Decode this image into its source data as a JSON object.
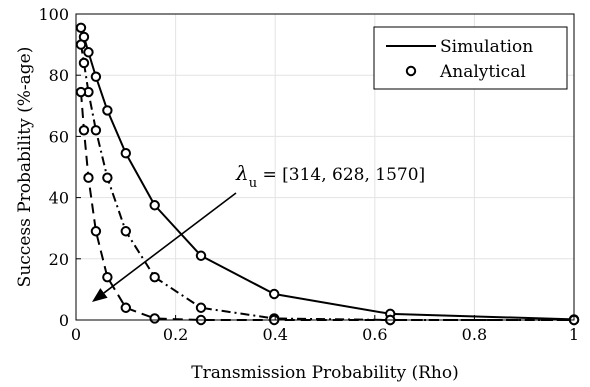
{
  "chart_data": {
    "type": "line",
    "xlabel": "Transmission Probability (Rho)",
    "ylabel": "Success Probability (%-age)",
    "xlim": [
      0,
      1
    ],
    "ylim": [
      0,
      100
    ],
    "xticks": [
      0,
      0.2,
      0.4,
      0.6,
      0.8,
      1
    ],
    "xtick_labels": [
      "0",
      "0.2",
      "0.4",
      "0.6",
      "0.8",
      "1"
    ],
    "yticks": [
      0,
      20,
      40,
      60,
      80,
      100
    ],
    "ytick_labels": [
      "0",
      "20",
      "40",
      "60",
      "80",
      "100"
    ],
    "grid": true,
    "legend_position": "top-right",
    "legend": [
      {
        "label": "Simulation",
        "style": "solid-line"
      },
      {
        "label": "Analytical",
        "style": "circle-marker"
      }
    ],
    "annotation": {
      "prefix": "λ",
      "subscript": "u",
      "text": " = [314, 628, 1570]"
    },
    "series": [
      {
        "linestyle": "solid",
        "x": [
          0.01,
          0.016,
          0.025,
          0.04,
          0.063,
          0.1,
          0.158,
          0.251,
          0.398,
          0.631,
          1.0
        ],
        "y": [
          95.5,
          92.5,
          87.5,
          79.5,
          68.5,
          54.5,
          37.5,
          21.0,
          8.5,
          2.0,
          0.2
        ]
      },
      {
        "linestyle": "dashdot",
        "x": [
          0.01,
          0.016,
          0.025,
          0.04,
          0.063,
          0.1,
          0.158,
          0.251,
          0.398,
          0.631,
          1.0
        ],
        "y": [
          90.0,
          84.0,
          74.5,
          62.0,
          46.5,
          29.0,
          14.0,
          4.0,
          0.5,
          0.0,
          0.0
        ]
      },
      {
        "linestyle": "dashed",
        "x": [
          0.01,
          0.016,
          0.025,
          0.04,
          0.063,
          0.1,
          0.158,
          0.251,
          0.398,
          0.631,
          1.0
        ],
        "y": [
          74.5,
          62.0,
          46.5,
          29.0,
          14.0,
          4.0,
          0.5,
          0.0,
          0.0,
          0.0,
          0.0
        ]
      }
    ]
  }
}
